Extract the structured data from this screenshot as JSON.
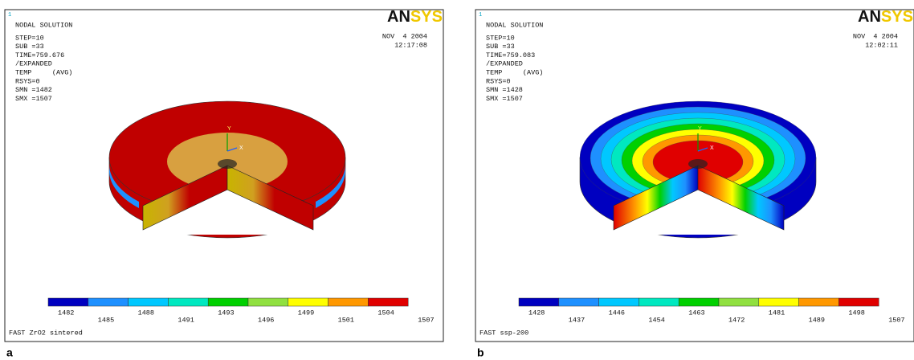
{
  "panels": [
    {
      "label": "a",
      "header": {
        "index": "1",
        "title": "NODAL SOLUTION",
        "info": [
          "STEP=10",
          "SUB =33",
          "TIME=759.676",
          "/EXPANDED",
          "TEMP     (AVG)",
          "RSYS=0",
          "SMN =1482",
          "SMX =1507"
        ],
        "logo": [
          "AN",
          "SYS"
        ],
        "date": "NOV  4 2004",
        "time": "12:17:08"
      },
      "triad": [
        "Y",
        "X"
      ],
      "legend": {
        "labels": [
          1482,
          1485,
          1488,
          1491,
          1493,
          1496,
          1499,
          1501,
          1504,
          1507
        ],
        "colors": [
          "#0000c0",
          "#1e90ff",
          "#00c8ff",
          "#00e8c0",
          "#00d000",
          "#90e040",
          "#ffff00",
          "#ff9800",
          "#e00000"
        ]
      },
      "footer": "FAST ZrO2 sintered"
    },
    {
      "label": "b",
      "header": {
        "index": "1",
        "title": "NODAL SOLUTION",
        "info": [
          "STEP=10",
          "SUB =33",
          "TIME=759.083",
          "/EXPANDED",
          "TEMP     (AVG)",
          "RSYS=0",
          "SMN =1428",
          "SMX =1507"
        ],
        "logo": [
          "AN",
          "SYS"
        ],
        "date": "NOV  4 2004",
        "time": "12:02:11"
      },
      "triad": [
        "Y",
        "X"
      ],
      "legend": {
        "labels": [
          1428,
          1437,
          1446,
          1454,
          1463,
          1472,
          1481,
          1489,
          1498,
          1507
        ],
        "colors": [
          "#0000c0",
          "#1e90ff",
          "#00c8ff",
          "#00e8c0",
          "#00d000",
          "#90e040",
          "#ffff00",
          "#ff9800",
          "#e00000"
        ]
      },
      "footer": "FAST ssp-200"
    }
  ]
}
